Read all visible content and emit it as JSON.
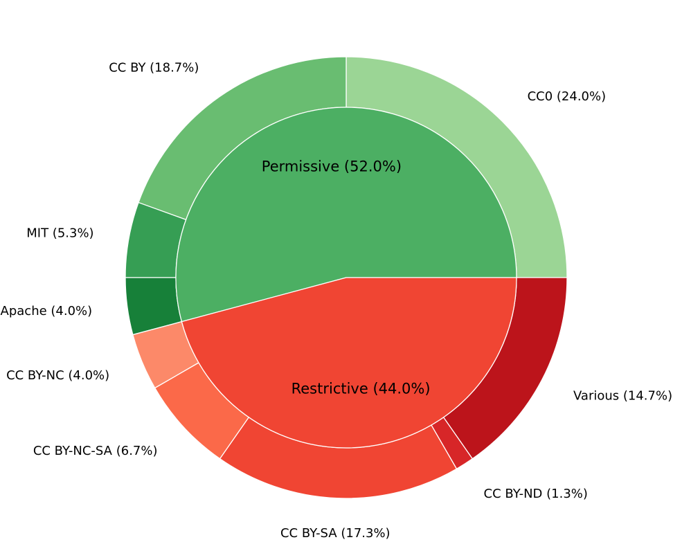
{
  "chart_data": {
    "type": "pie",
    "style": "nested-donut",
    "inner": [
      {
        "label": "Permissive (52.0%)",
        "value": 52.0,
        "color": "#4caf63"
      },
      {
        "label": "Restrictive (44.0%)",
        "value": 44.0,
        "color": "#f04533"
      }
    ],
    "outer": [
      {
        "label": "CC0 (24.0%)",
        "value": 24.0,
        "color": "#9bd595"
      },
      {
        "label": "CC BY (18.7%)",
        "value": 18.7,
        "color": "#69bd71"
      },
      {
        "label": "MIT (5.3%)",
        "value": 5.3,
        "color": "#369e54"
      },
      {
        "label": "Apache (4.0%)",
        "value": 4.0,
        "color": "#178039"
      },
      {
        "label": "CC BY-NC (4.0%)",
        "value": 4.0,
        "color": "#fc8969"
      },
      {
        "label": "CC BY-NC-SA (6.7%)",
        "value": 6.7,
        "color": "#fb6949"
      },
      {
        "label": "CC BY-SA (17.3%)",
        "value": 17.3,
        "color": "#f04533"
      },
      {
        "label": "CC BY-ND (1.3%)",
        "value": 1.3,
        "color": "#d72628"
      },
      {
        "label": "Various (14.7%)",
        "value": 14.7,
        "color": "#bc141b"
      }
    ]
  }
}
